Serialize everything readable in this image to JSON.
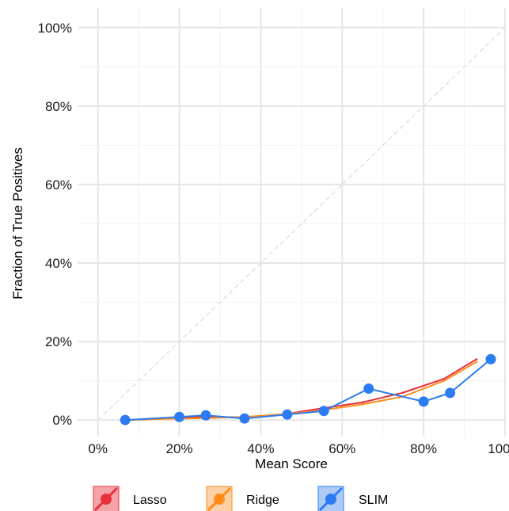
{
  "chart_data": {
    "type": "line",
    "title": "",
    "xlabel": "Mean Score",
    "ylabel": "Fraction of True Positives",
    "xlim": [
      -0.05,
      1.0
    ],
    "ylim": [
      -0.04,
      1.05
    ],
    "x_ticks": [
      0,
      0.2,
      0.4,
      0.6,
      0.8,
      1.0
    ],
    "x_tick_labels": [
      "0%",
      "20%",
      "40%",
      "60%",
      "80%",
      "100%"
    ],
    "y_ticks": [
      0,
      0.2,
      0.4,
      0.6,
      0.8,
      1.0
    ],
    "y_tick_labels": [
      "0%",
      "20%",
      "40%",
      "60%",
      "80%",
      "100%"
    ],
    "grid": true,
    "reference_line": {
      "from": [
        0,
        0
      ],
      "to": [
        1,
        1
      ],
      "style": "dashed",
      "color": "#dddddd"
    },
    "legend_position": "bottom",
    "series": [
      {
        "name": "Lasso",
        "color": "#e8303a",
        "show_points": false,
        "points": [
          [
            0.07,
            0.0
          ],
          [
            0.16,
            0.005
          ],
          [
            0.27,
            0.008
          ],
          [
            0.36,
            0.007
          ],
          [
            0.46,
            0.015
          ],
          [
            0.55,
            0.03
          ],
          [
            0.65,
            0.045
          ],
          [
            0.75,
            0.07
          ],
          [
            0.85,
            0.105
          ],
          [
            0.93,
            0.155
          ]
        ]
      },
      {
        "name": "Ridge",
        "color": "#ff8c1a",
        "show_points": false,
        "points": [
          [
            0.07,
            0.0
          ],
          [
            0.16,
            0.003
          ],
          [
            0.27,
            0.005
          ],
          [
            0.36,
            0.008
          ],
          [
            0.46,
            0.015
          ],
          [
            0.55,
            0.025
          ],
          [
            0.65,
            0.04
          ],
          [
            0.75,
            0.06
          ],
          [
            0.85,
            0.1
          ],
          [
            0.93,
            0.148
          ]
        ]
      },
      {
        "name": "SLIM",
        "color": "#2b7bf2",
        "show_points": true,
        "points": [
          [
            0.067,
            0.0
          ],
          [
            0.2,
            0.008
          ],
          [
            0.265,
            0.012
          ],
          [
            0.36,
            0.004
          ],
          [
            0.465,
            0.014
          ],
          [
            0.555,
            0.023
          ],
          [
            0.665,
            0.08
          ],
          [
            0.8,
            0.047
          ],
          [
            0.865,
            0.069
          ],
          [
            0.965,
            0.155
          ]
        ]
      }
    ],
    "legend": [
      {
        "label": "Lasso",
        "color": "#e8303a",
        "fill": "#f4a3a8"
      },
      {
        "label": "Ridge",
        "color": "#ff8c1a",
        "fill": "#fdd0a5"
      },
      {
        "label": "SLIM",
        "color": "#2b7bf2",
        "fill": "#aecbf7"
      }
    ]
  }
}
